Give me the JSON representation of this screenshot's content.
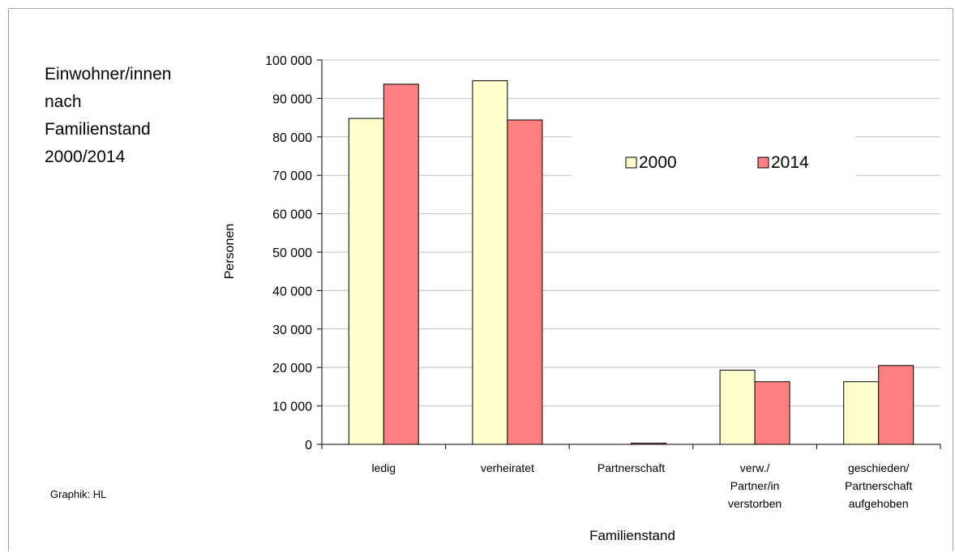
{
  "chart_data": {
    "type": "bar",
    "title": [
      "Einwohner/innen",
      "nach",
      "Familienstand",
      "2000/2014"
    ],
    "xlabel": "Familienstand",
    "ylabel": "Personen",
    "ylim": [
      0,
      100000
    ],
    "yticks": [
      "0",
      "10 000",
      "20 000",
      "30 000",
      "40 000",
      "50 000",
      "60 000",
      "70 000",
      "80 000",
      "90 000",
      "100 000"
    ],
    "categories": [
      [
        "ledig"
      ],
      [
        "verheiratet"
      ],
      [
        "Partnerschaft"
      ],
      [
        "verw./",
        "Partner/in",
        "verstorben"
      ],
      [
        "geschieden/",
        "Partnerschaft",
        "aufgehoben"
      ]
    ],
    "series": [
      {
        "name": "2000",
        "color": "#ffffcc",
        "values": [
          84800,
          94600,
          0,
          19300,
          16300
        ]
      },
      {
        "name": "2014",
        "color": "#ff8080",
        "values": [
          93700,
          84400,
          300,
          16300,
          20500
        ]
      }
    ],
    "grid": true,
    "legend": "top-right",
    "source_note": "Graphik: HL"
  }
}
